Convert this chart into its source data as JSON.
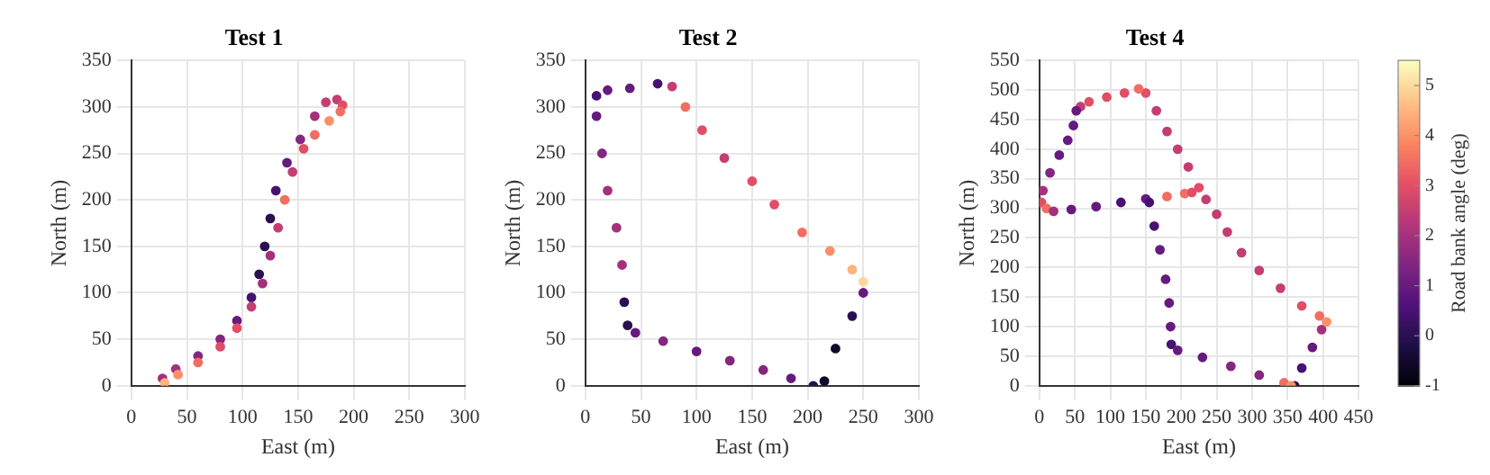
{
  "chart_data": [
    {
      "type": "scatter",
      "title": "Test 1",
      "xlabel": "East (m)",
      "ylabel": "North (m)",
      "xlim": [
        0,
        300
      ],
      "xticks": [
        0,
        50,
        100,
        150,
        200,
        250,
        300
      ],
      "ylim": [
        0,
        350
      ],
      "yticks": [
        0,
        50,
        100,
        150,
        200,
        250,
        300,
        350
      ],
      "grid": true,
      "marker": "circle",
      "x": [
        28,
        40,
        60,
        80,
        95,
        108,
        115,
        120,
        125,
        130,
        140,
        152,
        165,
        175,
        185,
        190,
        188,
        178,
        165,
        155,
        145,
        138,
        132,
        125,
        118,
        108,
        95,
        80,
        60,
        42,
        30
      ],
      "values": [
        8,
        18,
        32,
        50,
        70,
        95,
        120,
        150,
        180,
        210,
        240,
        265,
        290,
        305,
        308,
        302,
        295,
        285,
        270,
        255,
        230,
        200,
        170,
        140,
        110,
        85,
        62,
        42,
        25,
        12,
        3
      ],
      "colors": [
        "#a5317c",
        "#a5317c",
        "#852680",
        "#852680",
        "#661b7e",
        "#471273",
        "#281051",
        "#281051",
        "#281051",
        "#471273",
        "#661b7e",
        "#852680",
        "#a5317c",
        "#c43e73",
        "#c43e73",
        "#e14e66",
        "#f16e62",
        "#fb9067",
        "#f16e62",
        "#e14e66",
        "#c43e73",
        "#f16e62",
        "#c43e73",
        "#a5317c",
        "#a5317c",
        "#c43e73",
        "#e14e66",
        "#e14e66",
        "#f16e62",
        "#fb9067",
        "#fdb47e"
      ]
    },
    {
      "type": "scatter",
      "title": "Test 2",
      "xlabel": "East (m)",
      "ylabel": "North (m)",
      "xlim": [
        0,
        300
      ],
      "xticks": [
        0,
        50,
        100,
        150,
        200,
        250,
        300
      ],
      "ylim": [
        0,
        350
      ],
      "yticks": [
        0,
        50,
        100,
        150,
        200,
        250,
        300,
        350
      ],
      "grid": true,
      "marker": "circle",
      "x": [
        205,
        215,
        225,
        240,
        250,
        250,
        240,
        220,
        195,
        170,
        150,
        125,
        105,
        90,
        78,
        65,
        40,
        20,
        10,
        10,
        15,
        20,
        28,
        33,
        35,
        38,
        45,
        70,
        100,
        130,
        160,
        185
      ],
      "values": [
        0,
        5,
        40,
        75,
        100,
        112,
        125,
        145,
        165,
        195,
        220,
        245,
        275,
        300,
        322,
        325,
        320,
        318,
        312,
        290,
        250,
        210,
        170,
        130,
        90,
        65,
        57,
        48,
        37,
        27,
        17,
        8
      ],
      "colors": [
        "#281051",
        "#110a2b",
        "#110a2b",
        "#281051",
        "#661b7e",
        "#fdd89c",
        "#fdb47e",
        "#fb9067",
        "#f16e62",
        "#e14e66",
        "#e14e66",
        "#c43e73",
        "#e14e66",
        "#f16e62",
        "#c43e73",
        "#471273",
        "#661b7e",
        "#661b7e",
        "#471273",
        "#661b7e",
        "#852680",
        "#a5317c",
        "#a5317c",
        "#a5317c",
        "#281051",
        "#281051",
        "#661b7e",
        "#852680",
        "#661b7e",
        "#852680",
        "#852680",
        "#661b7e"
      ]
    },
    {
      "type": "scatter",
      "title": "Test 4",
      "xlabel": "East (m)",
      "ylabel": "North (m)",
      "xlim": [
        0,
        450
      ],
      "xticks": [
        0,
        50,
        100,
        150,
        200,
        250,
        300,
        350,
        400,
        450
      ],
      "ylim": [
        0,
        550
      ],
      "yticks": [
        0,
        50,
        100,
        150,
        200,
        250,
        300,
        350,
        400,
        450,
        500,
        550
      ],
      "grid": true,
      "marker": "circle",
      "clim": [
        -1,
        5.5
      ],
      "cticks": [
        -1,
        0,
        1,
        2,
        3,
        4,
        5
      ],
      "clabel": "Road bank angle (deg)",
      "x": [
        360,
        370,
        385,
        398,
        405,
        395,
        370,
        340,
        310,
        285,
        265,
        250,
        235,
        225,
        210,
        195,
        180,
        165,
        150,
        140,
        120,
        95,
        70,
        58,
        52,
        48,
        40,
        28,
        15,
        5,
        3,
        10,
        20,
        45,
        80,
        115,
        150,
        180,
        205,
        215,
        155,
        162,
        170,
        178,
        183,
        185,
        186,
        195,
        230,
        270,
        310,
        345,
        355
      ],
      "values": [
        0,
        30,
        65,
        95,
        108,
        118,
        135,
        165,
        195,
        225,
        260,
        290,
        315,
        335,
        370,
        400,
        430,
        465,
        495,
        502,
        495,
        488,
        480,
        472,
        465,
        440,
        415,
        390,
        360,
        330,
        310,
        300,
        295,
        298,
        303,
        310,
        316,
        320,
        325,
        327,
        310,
        270,
        230,
        180,
        140,
        100,
        70,
        60,
        48,
        33,
        18,
        5,
        0
      ],
      "cvalues": [
        0,
        0.5,
        1,
        2,
        4,
        3.5,
        3,
        2.5,
        2.5,
        2.5,
        2.5,
        2.5,
        2.5,
        3,
        2.5,
        2.5,
        2.5,
        2.5,
        3,
        3.5,
        3,
        3,
        3,
        2.5,
        1,
        1,
        1,
        1,
        1.5,
        2,
        3,
        3.5,
        2,
        1,
        1,
        0.5,
        1,
        3.5,
        3.5,
        3,
        0.5,
        0.5,
        1,
        1,
        1,
        1,
        0.5,
        1,
        1,
        1.5,
        1.5,
        3.5,
        4
      ]
    }
  ]
}
